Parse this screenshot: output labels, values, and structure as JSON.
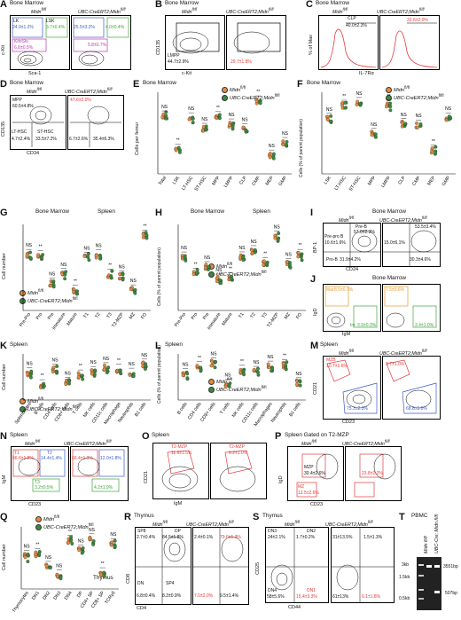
{
  "colors": {
    "midn": "#e98a3a",
    "ubc": "#3b8a3f",
    "red": "#e23b3b",
    "blue": "#3b5bc9",
    "green": "#3aa63a",
    "purple": "#b43bb4",
    "orange": "#e79b2e"
  },
  "labels": {
    "bone_marrow": "Bone Marrow",
    "spleen": "Spleen",
    "thymus": "Thymus",
    "pbmc": "PBMC",
    "ctrl": "Midn",
    "ctrl_sup": "fl/fl",
    "ko": "UBC-CreERT2;Midn",
    "ko_sup": "fl/fl",
    "gated": "Spleen Gated on T2-MZP"
  },
  "panels": [
    {
      "id": "A",
      "x_axis": "Sca-1",
      "y_axis": "c-Kit",
      "gates_ctrl": [
        "LK",
        "LSK",
        "24.9±1.2%",
        "3.7±0.4%",
        "KitoSlo",
        "6.8±0.5%"
      ],
      "gates_ko": [
        "25.5±3.2%",
        "4.0±0.4%",
        "5.8±0.7%"
      ]
    },
    {
      "id": "B",
      "x_axis": "c-Kit",
      "y_axis": "CD135",
      "gates_ctrl": [
        "LMPP",
        "44.7±2.9%"
      ],
      "gates_ko": [
        "29.7±1.8%"
      ]
    },
    {
      "id": "C",
      "x_axis": "IL-7Rα",
      "y_axis": "% of Max",
      "gates_ctrl": [
        "CLP",
        "40.0±2.3%"
      ],
      "gates_ko": [
        "32.6±2.0%"
      ]
    },
    {
      "id": "D",
      "x_axis": "CD34",
      "y_axis": "CD135",
      "gates_ctrl": [
        "MPP",
        "60.5±4.8%",
        "LT-HSC",
        "ST-HSC",
        "4.7±2.4%",
        "33.5±7.2%"
      ],
      "gates_ko": [
        "47.6±2.0%",
        "6.7±2.6%",
        "35.4±6.3%"
      ]
    },
    {
      "id": "E",
      "y_axis": "Cells per femur",
      "categories": [
        "Total",
        "LSK",
        "LT-HSC",
        "ST-HSC",
        "MPP",
        "LMPP",
        "CLP",
        "CMP",
        "MEP",
        "GMP"
      ]
    },
    {
      "id": "F",
      "y_axis": "Cells (% of parent population)",
      "categories": [
        "LSK",
        "LT-HSC",
        "ST-HSC",
        "MPP",
        "LMPP",
        "CLP",
        "CMP",
        "MEP",
        "GMP"
      ]
    },
    {
      "id": "G",
      "y_axis": "Cell number",
      "categories": [
        "Pre-Pro",
        "Pro",
        "Pre",
        "Immature",
        "Mature",
        "T1",
        "T2",
        "T3",
        "T2-MZP",
        "MZ",
        "FO"
      ]
    },
    {
      "id": "H",
      "y_axis": "Cells (% of parent population)",
      "categories": [
        "Pre-Pro",
        "Pro",
        "Pre",
        "Immature",
        "Mature",
        "T1",
        "T2",
        "T3",
        "T2-MZP",
        "MZ",
        "FO"
      ]
    },
    {
      "id": "I",
      "x_axis": "CD24",
      "y_axis": "BP-1",
      "gates_ctrl": [
        "Pre-B",
        "57.0±2.3%",
        "Pre-pro B",
        "10.6±1.6%",
        "Pro-B",
        "31.9±4.2%"
      ],
      "gates_ko": [
        "53.5±3.4%",
        "15.0±6.1%",
        "30.3±4.6%"
      ]
    },
    {
      "id": "J",
      "x_axis": "IgM",
      "y_axis": "IgD",
      "gates_ctrl": [
        "Mat",
        "8.5±0.7%",
        "Im",
        "3.9±0.3%"
      ],
      "gates_ko": [
        "7.5±0.6%",
        "3.4±1.0%"
      ]
    },
    {
      "id": "K",
      "y_axis": "Cell number",
      "categories": [
        "Splenocytes",
        "B cells",
        "CD4 cells",
        "CD8+ cells",
        "T cells",
        "NK cells",
        "CD11c cells",
        "Macrophage",
        "Neutrophils",
        "B1 cells"
      ]
    },
    {
      "id": "L",
      "y_axis": "Cells (% of parent population)",
      "categories": [
        "B cells",
        "CD4 cells",
        "CD8+ cells",
        "T cells",
        "NK cells",
        "CD11c cells",
        "Macrophages",
        "Neutrophils",
        "B1 cells"
      ]
    },
    {
      "id": "M",
      "x_axis": "CD23",
      "y_axis": "CD21",
      "gates_ctrl": [
        "MZB",
        "10.7±1.6%",
        "75.3±2.3%"
      ],
      "gates_ko": [
        "9.7±1.0%",
        "68.8±1.0%"
      ]
    },
    {
      "id": "N",
      "x_axis": "CD23",
      "y_axis": "IgM",
      "gates_ctrl": [
        "T1",
        "T2",
        "66.6±1.8%",
        "14.4±1.4%",
        "T3",
        "3.2±0.5%"
      ],
      "gates_ko": [
        "66.4±1.9%",
        "12.0±1.8%",
        "4.2±1.9%"
      ]
    },
    {
      "id": "O",
      "x_axis": "IgM",
      "y_axis": "CD21",
      "gates_ctrl": [
        "T2-MZP",
        "11.6±1.5%"
      ],
      "gates_ko": [
        "9.2±1.0%"
      ]
    },
    {
      "id": "P",
      "x_axis": "CD23",
      "y_axis": "IgD",
      "gates_ctrl": [
        "MZP",
        "30.4±2.6%",
        "MZ",
        "13.5±2.6%"
      ],
      "gates_ko": [
        "23.8±2.2%"
      ]
    },
    {
      "id": "Q",
      "y_axis": "Cell number",
      "categories": [
        "Thymocytes",
        "DN1",
        "DN2",
        "DN3",
        "DN4",
        "DP",
        "CD4+ SP",
        "CD8+ SP",
        "TCRγδ"
      ]
    },
    {
      "id": "R",
      "x_axis": "CD4",
      "y_axis": "CD8",
      "gates_ctrl": [
        "SP8",
        "DP",
        "2.7±0.4%",
        "84.5±1.8%",
        "DN",
        "SP4",
        "6.8±0.4%",
        "8.3±0.9%"
      ],
      "gates_ko": [
        "2.4±0.1%",
        "79.6±1.3%",
        "7.0±2.0%",
        "9.5±1.4%"
      ]
    },
    {
      "id": "S",
      "x_axis": "CD44",
      "y_axis": "CD25",
      "gates_ctrl": [
        "DN3",
        "DN2",
        "24±2.1%",
        "1.7±0.2%",
        "DN4",
        "DN1",
        "58±5.6%",
        "15.4±3.3%"
      ],
      "gates_ko": [
        "31±13.5%",
        "1.5±1.3%",
        "61±13%",
        "6.1±1.8%"
      ]
    },
    {
      "id": "T",
      "lanes": [
        "Midn fl/fl",
        "UBC-Cre; Midn fl/fl"
      ],
      "ladder": [
        "3kb",
        "1.5kb",
        "0.5kb"
      ],
      "bands": [
        "3551bp",
        "507bp"
      ]
    }
  ],
  "stats": {
    "ns": "NS",
    "s1": "*",
    "s2": "**",
    "s3": "***"
  }
}
